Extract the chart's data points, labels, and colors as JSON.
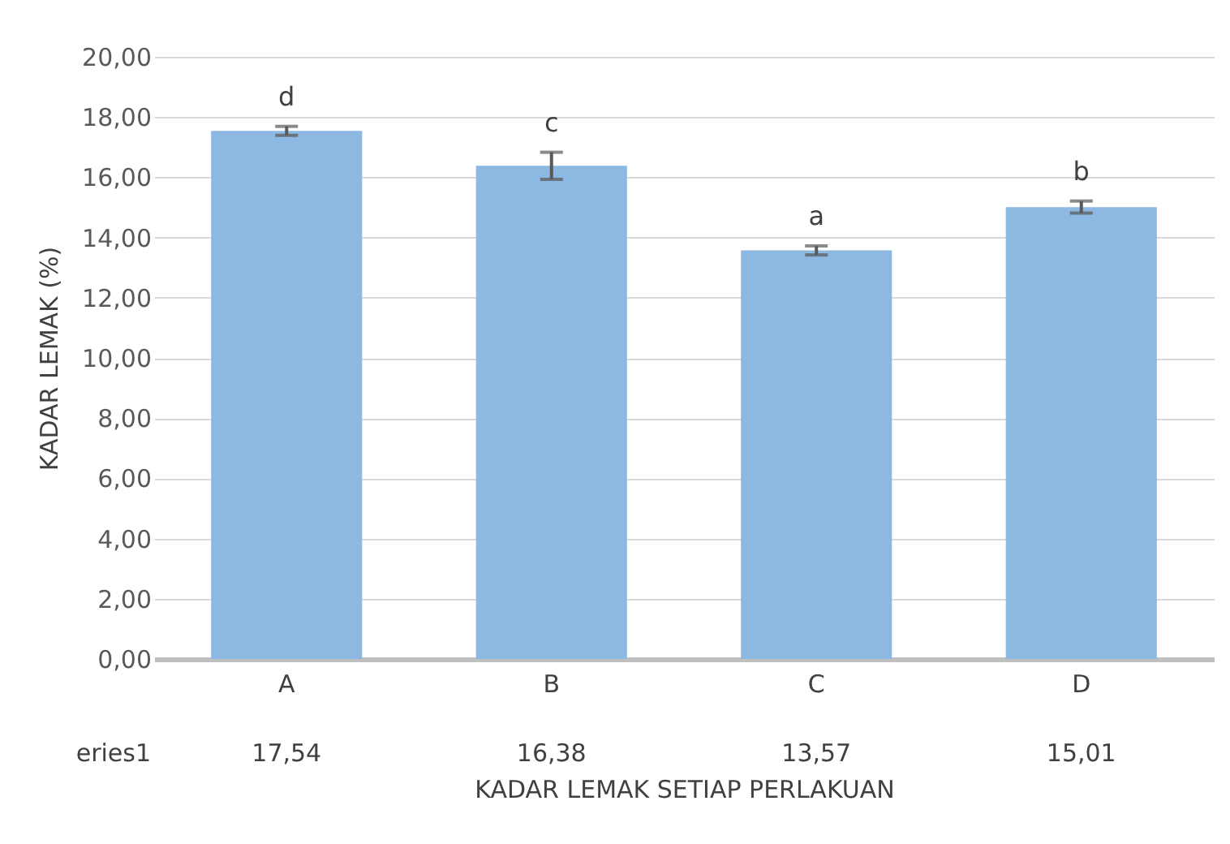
{
  "chart_data": {
    "type": "bar",
    "xlabel": "KADAR LEMAK SETIAP PERLAKUAN",
    "ylabel": "KADAR LEMAK (%)",
    "categories": [
      "A",
      "B",
      "C",
      "D"
    ],
    "series": [
      {
        "name": "eries1",
        "color": "#8db8e2",
        "values": [
          17.54,
          16.38,
          13.57,
          15.01
        ],
        "errors": [
          0.15,
          0.45,
          0.15,
          0.2
        ],
        "value_labels": [
          "17,54",
          "16,38",
          "13,57",
          "15,01"
        ]
      }
    ],
    "ylim": [
      0,
      20
    ],
    "yticks": [
      {
        "value": 0,
        "label": "0,00"
      },
      {
        "value": 2,
        "label": "2,00"
      },
      {
        "value": 4,
        "label": "4,00"
      },
      {
        "value": 6,
        "label": "6,00"
      },
      {
        "value": 8,
        "label": "8,00"
      },
      {
        "value": 10,
        "label": "10,00"
      },
      {
        "value": 12,
        "label": "12,00"
      },
      {
        "value": 14,
        "label": "14,00"
      },
      {
        "value": 16,
        "label": "16,00"
      },
      {
        "value": 18,
        "label": "18,00"
      },
      {
        "value": 20,
        "label": "20,00"
      }
    ],
    "grid": "y",
    "legend": false,
    "annotations": [
      "d",
      "c",
      "a",
      "b"
    ]
  }
}
